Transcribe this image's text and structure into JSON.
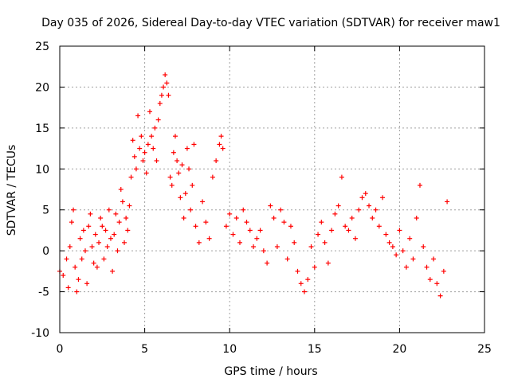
{
  "chart_data": {
    "type": "scatter",
    "title": "Day 035 of 2026, Sidereal Day-to-day VTEC variation (SDTVAR) for receiver maw1",
    "xlabel": "GPS time / hours",
    "ylabel": "SDTVAR / TECUs",
    "xlim": [
      0,
      25
    ],
    "ylim": [
      -10,
      25
    ],
    "xticks": [
      0,
      5,
      10,
      15,
      20,
      25
    ],
    "yticks": [
      -10,
      -5,
      0,
      5,
      10,
      15,
      20,
      25
    ],
    "xtick_labels": [
      "0",
      "5",
      "10",
      "15",
      "20",
      "25"
    ],
    "ytick_labels": [
      "-10",
      "-5",
      "0",
      "5",
      "10",
      "15",
      "20",
      "25"
    ],
    "grid": true,
    "marker": "+",
    "color": "#ff0000",
    "series": [
      {
        "name": "SDTVAR",
        "points": [
          [
            0.0,
            -2.5
          ],
          [
            0.2,
            -3.0
          ],
          [
            0.4,
            -1.0
          ],
          [
            0.5,
            -4.5
          ],
          [
            0.6,
            0.5
          ],
          [
            0.7,
            3.5
          ],
          [
            0.8,
            5.0
          ],
          [
            0.9,
            -2.0
          ],
          [
            1.0,
            -5.0
          ],
          [
            1.1,
            -3.5
          ],
          [
            1.2,
            1.5
          ],
          [
            1.3,
            -1.0
          ],
          [
            1.4,
            2.5
          ],
          [
            1.5,
            0.0
          ],
          [
            1.6,
            -4.0
          ],
          [
            1.7,
            3.0
          ],
          [
            1.8,
            4.5
          ],
          [
            1.9,
            0.5
          ],
          [
            2.0,
            -1.5
          ],
          [
            2.1,
            2.0
          ],
          [
            2.2,
            -2.0
          ],
          [
            2.3,
            1.0
          ],
          [
            2.4,
            4.0
          ],
          [
            2.5,
            3.0
          ],
          [
            2.6,
            -1.0
          ],
          [
            2.7,
            2.5
          ],
          [
            2.8,
            0.5
          ],
          [
            2.9,
            5.0
          ],
          [
            3.0,
            1.5
          ],
          [
            3.1,
            -2.5
          ],
          [
            3.2,
            2.0
          ],
          [
            3.3,
            4.5
          ],
          [
            3.4,
            0.0
          ],
          [
            3.5,
            3.5
          ],
          [
            3.6,
            7.5
          ],
          [
            3.7,
            6.0
          ],
          [
            3.8,
            1.0
          ],
          [
            3.9,
            4.0
          ],
          [
            4.0,
            2.5
          ],
          [
            4.1,
            5.5
          ],
          [
            4.2,
            9.0
          ],
          [
            4.3,
            13.5
          ],
          [
            4.4,
            11.5
          ],
          [
            4.5,
            10.0
          ],
          [
            4.6,
            16.5
          ],
          [
            4.7,
            12.5
          ],
          [
            4.8,
            14.0
          ],
          [
            4.9,
            11.0
          ],
          [
            5.0,
            12.0
          ],
          [
            5.1,
            9.5
          ],
          [
            5.2,
            13.0
          ],
          [
            5.3,
            17.0
          ],
          [
            5.4,
            14.0
          ],
          [
            5.5,
            12.5
          ],
          [
            5.6,
            15.0
          ],
          [
            5.7,
            11.0
          ],
          [
            5.8,
            16.0
          ],
          [
            5.9,
            18.0
          ],
          [
            6.0,
            19.0
          ],
          [
            6.1,
            20.0
          ],
          [
            6.2,
            21.5
          ],
          [
            6.3,
            20.5
          ],
          [
            6.4,
            19.0
          ],
          [
            6.5,
            9.0
          ],
          [
            6.6,
            8.0
          ],
          [
            6.7,
            12.0
          ],
          [
            6.8,
            14.0
          ],
          [
            6.9,
            11.0
          ],
          [
            7.0,
            9.5
          ],
          [
            7.1,
            6.5
          ],
          [
            7.2,
            10.5
          ],
          [
            7.3,
            4.0
          ],
          [
            7.4,
            7.0
          ],
          [
            7.5,
            12.5
          ],
          [
            7.6,
            10.0
          ],
          [
            7.7,
            5.0
          ],
          [
            7.8,
            8.0
          ],
          [
            7.9,
            13.0
          ],
          [
            8.0,
            3.0
          ],
          [
            8.2,
            1.0
          ],
          [
            8.4,
            6.0
          ],
          [
            8.6,
            3.5
          ],
          [
            8.8,
            1.5
          ],
          [
            9.0,
            9.0
          ],
          [
            9.2,
            11.0
          ],
          [
            9.4,
            13.0
          ],
          [
            9.5,
            14.0
          ],
          [
            9.6,
            12.5
          ],
          [
            9.8,
            3.0
          ],
          [
            10.0,
            4.5
          ],
          [
            10.2,
            2.0
          ],
          [
            10.4,
            4.0
          ],
          [
            10.6,
            1.0
          ],
          [
            10.8,
            5.0
          ],
          [
            11.0,
            3.5
          ],
          [
            11.2,
            2.5
          ],
          [
            11.4,
            0.5
          ],
          [
            11.6,
            1.5
          ],
          [
            11.8,
            2.5
          ],
          [
            12.0,
            0.0
          ],
          [
            12.2,
            -1.5
          ],
          [
            12.4,
            5.5
          ],
          [
            12.6,
            4.0
          ],
          [
            12.8,
            0.5
          ],
          [
            13.0,
            5.0
          ],
          [
            13.2,
            3.5
          ],
          [
            13.4,
            -1.0
          ],
          [
            13.6,
            3.0
          ],
          [
            13.8,
            1.0
          ],
          [
            14.0,
            -2.5
          ],
          [
            14.2,
            -4.0
          ],
          [
            14.4,
            -5.0
          ],
          [
            14.6,
            -3.5
          ],
          [
            14.8,
            0.5
          ],
          [
            15.0,
            -2.0
          ],
          [
            15.2,
            2.0
          ],
          [
            15.4,
            3.5
          ],
          [
            15.6,
            1.0
          ],
          [
            15.8,
            -1.5
          ],
          [
            16.0,
            2.5
          ],
          [
            16.2,
            4.5
          ],
          [
            16.4,
            5.5
          ],
          [
            16.6,
            9.0
          ],
          [
            16.8,
            3.0
          ],
          [
            17.0,
            2.5
          ],
          [
            17.2,
            4.0
          ],
          [
            17.4,
            1.5
          ],
          [
            17.6,
            5.0
          ],
          [
            17.8,
            6.5
          ],
          [
            18.0,
            7.0
          ],
          [
            18.2,
            5.5
          ],
          [
            18.4,
            4.0
          ],
          [
            18.6,
            5.0
          ],
          [
            18.8,
            3.0
          ],
          [
            19.0,
            6.5
          ],
          [
            19.2,
            2.0
          ],
          [
            19.4,
            1.0
          ],
          [
            19.6,
            0.5
          ],
          [
            19.8,
            -0.5
          ],
          [
            20.0,
            2.5
          ],
          [
            20.2,
            0.0
          ],
          [
            20.4,
            -2.0
          ],
          [
            20.6,
            1.5
          ],
          [
            20.8,
            -1.0
          ],
          [
            21.0,
            4.0
          ],
          [
            21.2,
            8.0
          ],
          [
            21.4,
            0.5
          ],
          [
            21.6,
            -2.0
          ],
          [
            21.8,
            -3.5
          ],
          [
            22.0,
            -1.0
          ],
          [
            22.2,
            -4.0
          ],
          [
            22.4,
            -5.5
          ],
          [
            22.6,
            -2.5
          ],
          [
            22.8,
            6.0
          ]
        ]
      }
    ]
  }
}
